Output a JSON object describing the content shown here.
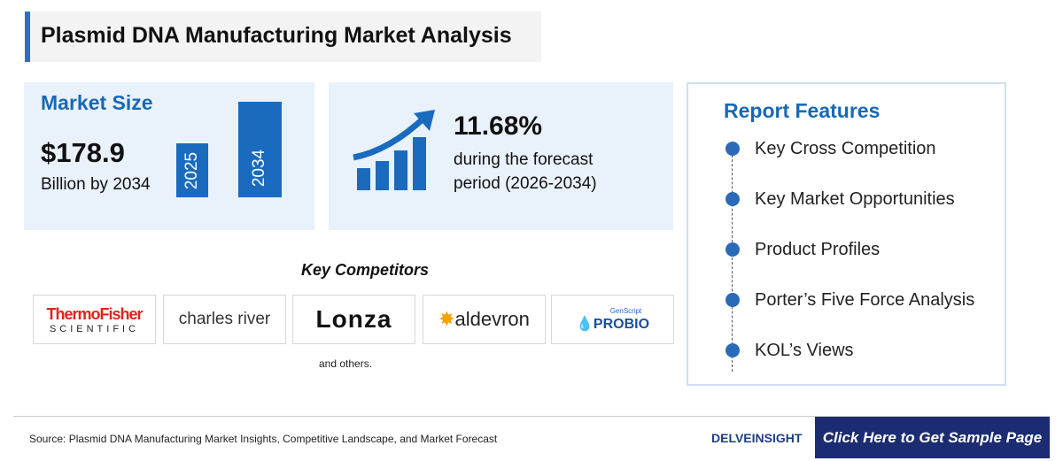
{
  "header": {
    "title": "Plasmid DNA Manufacturing Market Analysis"
  },
  "market_size": {
    "heading": "Market Size",
    "value": "$178.9",
    "caption": "Billion by 2034",
    "bar_labels": [
      "2025",
      "2034"
    ]
  },
  "growth": {
    "rate": "11.68%",
    "lines": [
      "during the forecast",
      "period (2026-2034)"
    ]
  },
  "report_features": {
    "heading": "Report Features",
    "items": [
      "Key Cross Competition",
      "Key Market Opportunities",
      "Product Profiles",
      "Porter’s Five Force Analysis",
      "KOL’s Views"
    ]
  },
  "competitors": {
    "heading": "Key Competitors",
    "logos": [
      {
        "name": "ThermoFisher",
        "sub": "SCIENTIFIC"
      },
      {
        "name": "charles river"
      },
      {
        "name": "Lonza"
      },
      {
        "name": "aldevron"
      },
      {
        "name": "PROBIO",
        "sub": "GenScript"
      }
    ],
    "note": "and others."
  },
  "footer": {
    "source": "Source: Plasmid DNA Manufacturing Market Insights, Competitive Landscape, and Market Forecast",
    "brand": "DELVEINSIGHT",
    "button": "Click Here to Get Sample Page"
  }
}
